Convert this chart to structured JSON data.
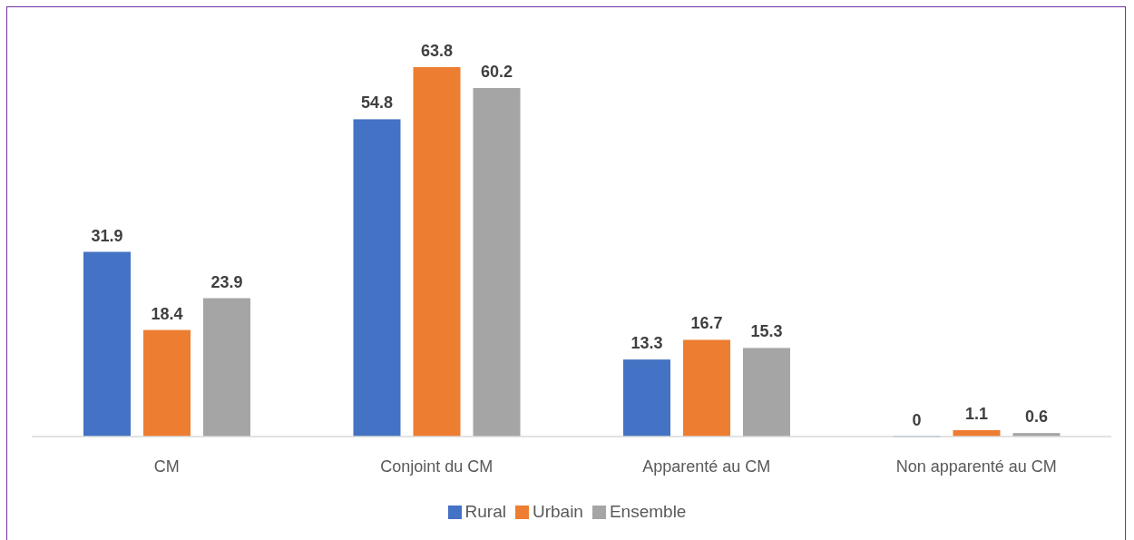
{
  "chart_data": {
    "type": "bar",
    "categories": [
      "CM",
      "Conjoint du CM",
      "Apparenté au CM",
      "Non apparenté au CM"
    ],
    "series": [
      {
        "name": "Rural",
        "color": "#4472c4",
        "values": [
          31.9,
          54.8,
          13.3,
          0
        ]
      },
      {
        "name": "Urbain",
        "color": "#ed7d31",
        "values": [
          18.4,
          63.8,
          16.7,
          1.1
        ]
      },
      {
        "name": "Ensemble",
        "color": "#a5a5a5",
        "values": [
          23.9,
          60.2,
          15.3,
          0.6
        ]
      }
    ],
    "data_labels": true,
    "legend": "bottom"
  }
}
